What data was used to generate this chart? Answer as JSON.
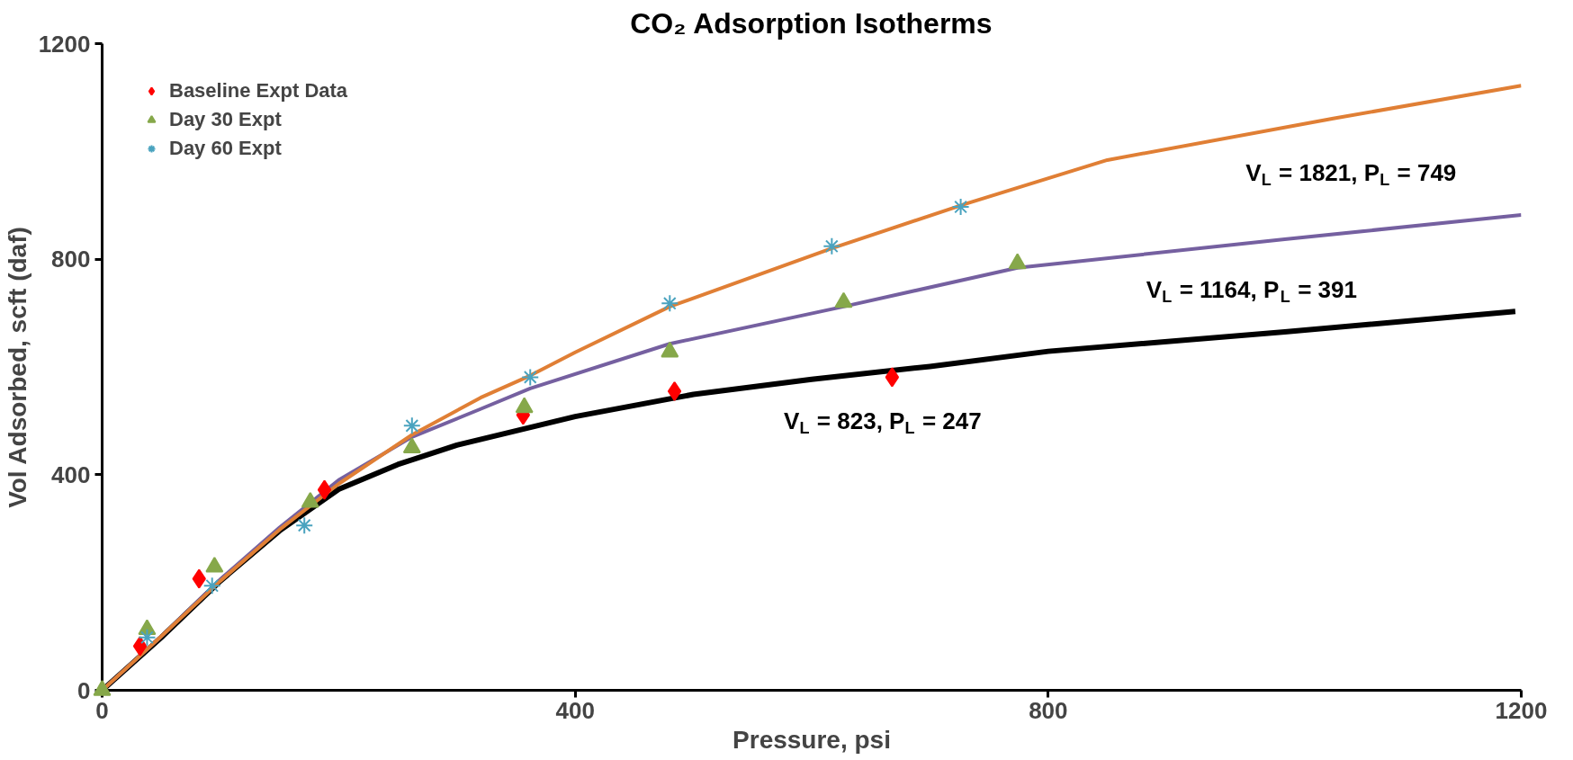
{
  "chart_data": {
    "type": "scatter",
    "title": "CO₂ Adsorption Isotherms",
    "xlabel": "Pressure, psi",
    "ylabel": "Vol Adsorbed, scft (daf)",
    "xlim": [
      0,
      1200
    ],
    "ylim": [
      0,
      1200
    ],
    "xticks": [
      0,
      400,
      800,
      1200
    ],
    "yticks": [
      0,
      400,
      800,
      1200
    ],
    "grid": false,
    "legend": "top left",
    "series": [
      {
        "name": "Baseline Expt Data",
        "color": "#ff0000",
        "marker": "diamond",
        "x": [
          32,
          82,
          188,
          356,
          484,
          668
        ],
        "values": [
          82,
          207,
          372,
          511,
          555,
          581
        ]
      },
      {
        "name": "Day 30 Expt",
        "color": "#86a84a",
        "marker": "triangle",
        "x": [
          0,
          38,
          95,
          176,
          262,
          357,
          480,
          627,
          774
        ],
        "values": [
          0,
          113,
          229,
          349,
          450,
          525,
          628,
          720,
          792
        ]
      },
      {
        "name": "Day 60 Expt",
        "color": "#4aa3bf",
        "marker": "cross",
        "x": [
          38,
          93,
          171,
          262,
          362,
          480,
          617,
          726
        ],
        "values": [
          98,
          194,
          306,
          491,
          581,
          718,
          824,
          897
        ]
      },
      {
        "type": "line",
        "color": "#000000",
        "x": [
          0,
          50,
          100,
          150,
          200,
          250,
          300,
          400,
          500,
          600,
          700,
          800,
          1000,
          1195
        ],
        "values": [
          0,
          98,
          203,
          296,
          373,
          419,
          455,
          508,
          549,
          577,
          601,
          629,
          665,
          703
        ]
      },
      {
        "type": "line",
        "color": "#7560a0",
        "x": [
          0,
          50,
          100,
          150,
          200,
          262,
          320,
          362,
          480,
          627,
          774,
          1000,
          1200
        ],
        "values": [
          0,
          100,
          206,
          302,
          390,
          470,
          522,
          560,
          643,
          712,
          784,
          837,
          882
        ]
      },
      {
        "type": "line",
        "color": "#e07f35",
        "x": [
          0,
          50,
          100,
          150,
          200,
          262,
          320,
          362,
          400,
          480,
          617,
          729,
          850,
          1041,
          1200
        ],
        "values": [
          0,
          100,
          203,
          298,
          383,
          474,
          543,
          584,
          627,
          712,
          820,
          902,
          984,
          1061,
          1122
        ]
      }
    ],
    "annotations": [
      "V$_{L}$ = 823, P$_{L}$ = 247",
      "V$_{L}$ = 1821, P$_{L}$ = 749",
      "V$_{L}$ = 1164, P$_{L}$ = 391"
    ]
  }
}
